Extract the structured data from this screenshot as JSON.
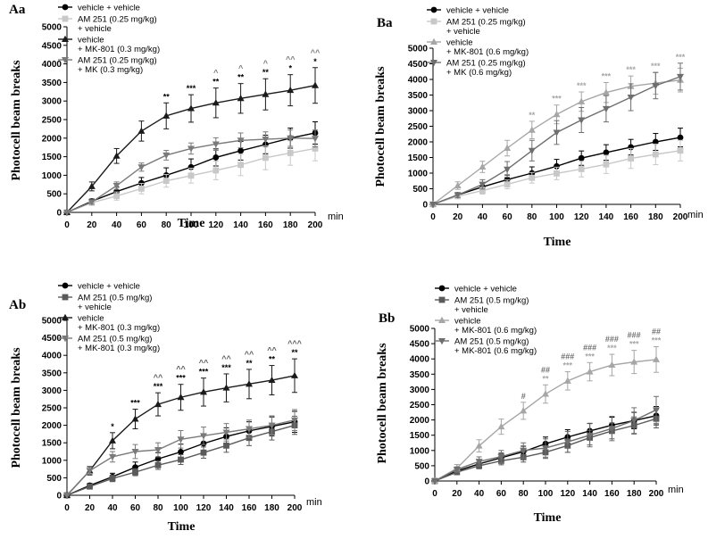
{
  "chart_data": [
    {
      "panel": "Aa",
      "type": "line",
      "xlabel": "Time",
      "ylabel": "Photocell beam breaks",
      "x_unit": "min",
      "x": [
        0,
        20,
        40,
        60,
        80,
        100,
        120,
        140,
        160,
        180,
        200
      ],
      "ylim": [
        0,
        5000
      ],
      "yticks": [
        0,
        500,
        1000,
        1500,
        2000,
        2500,
        3000,
        3500,
        4000,
        4500,
        5000
      ],
      "series": [
        {
          "name": "vehicle + vehicle",
          "color": "#000000",
          "marker": "circle",
          "values": [
            0,
            300,
            560,
            790,
            1000,
            1220,
            1480,
            1660,
            1830,
            2000,
            2140
          ],
          "errors": [
            0,
            60,
            120,
            150,
            200,
            220,
            230,
            250,
            250,
            270,
            300
          ]
        },
        {
          "name": "AM 251 (0.25 mg/kg) + vehicle",
          "color": "#c8c8c8",
          "marker": "square",
          "values": [
            0,
            260,
            440,
            640,
            850,
            990,
            1130,
            1280,
            1470,
            1600,
            1720
          ],
          "errors": [
            0,
            60,
            110,
            140,
            170,
            200,
            250,
            290,
            320,
            330,
            330
          ]
        },
        {
          "name": "vehicle + MK-801 (0.3 mg/kg)",
          "color": "#1a1a1a",
          "marker": "triangle",
          "values": [
            0,
            700,
            1520,
            2190,
            2600,
            2800,
            2950,
            3070,
            3180,
            3290,
            3420
          ],
          "errors": [
            0,
            120,
            200,
            270,
            350,
            370,
            400,
            400,
            420,
            420,
            480
          ]
        },
        {
          "name": "AM 251 (0.25 mg/kg) + MK (0.3 mg/kg)",
          "color": "#7a7a7a",
          "marker": "triangle-down",
          "values": [
            0,
            280,
            720,
            1220,
            1540,
            1720,
            1840,
            1940,
            1970,
            2000,
            1990
          ],
          "errors": [
            0,
            60,
            100,
            110,
            130,
            150,
            170,
            200,
            200,
            220,
            230
          ]
        }
      ],
      "annotations": [
        {
          "x": 80,
          "text": "**",
          "color": "#000000"
        },
        {
          "x": 100,
          "text": "***",
          "color": "#000000"
        },
        {
          "x": 120,
          "text": "**",
          "color": "#000000"
        },
        {
          "x": 140,
          "text": "**",
          "color": "#000000"
        },
        {
          "x": 160,
          "text": "**",
          "color": "#000000"
        },
        {
          "x": 180,
          "text": "*",
          "color": "#000000"
        },
        {
          "x": 200,
          "text": "*",
          "color": "#000000"
        },
        {
          "x": 120,
          "text": "^",
          "color": "#7a7a7a"
        },
        {
          "x": 140,
          "text": "^",
          "color": "#7a7a7a"
        },
        {
          "x": 160,
          "text": "^",
          "color": "#7a7a7a"
        },
        {
          "x": 180,
          "text": "^^",
          "color": "#7a7a7a"
        },
        {
          "x": 200,
          "text": "^^",
          "color": "#7a7a7a"
        }
      ]
    },
    {
      "panel": "Ba",
      "type": "line",
      "xlabel": "Time",
      "ylabel": "Photocell beam breaks",
      "x_unit": "min",
      "x": [
        0,
        20,
        40,
        60,
        80,
        100,
        120,
        140,
        160,
        180,
        200
      ],
      "ylim": [
        0,
        5000
      ],
      "yticks": [
        0,
        500,
        1000,
        1500,
        2000,
        2500,
        3000,
        3500,
        4000,
        4500,
        5000
      ],
      "series": [
        {
          "name": "vehicle + vehicle",
          "color": "#000000",
          "marker": "circle",
          "values": [
            0,
            300,
            560,
            790,
            1000,
            1220,
            1480,
            1660,
            1830,
            2000,
            2140
          ],
          "errors": [
            0,
            60,
            120,
            150,
            200,
            220,
            230,
            250,
            250,
            270,
            300
          ]
        },
        {
          "name": "AM 251 (0.25 mg/kg) + vehicle",
          "color": "#c8c8c8",
          "marker": "square",
          "values": [
            0,
            260,
            440,
            640,
            850,
            990,
            1130,
            1280,
            1470,
            1600,
            1720
          ],
          "errors": [
            0,
            60,
            110,
            140,
            170,
            200,
            250,
            290,
            320,
            330,
            330
          ]
        },
        {
          "name": "vehicle + MK-801 (0.6 mg/kg)",
          "color": "#a6a6a6",
          "marker": "triangle",
          "values": [
            0,
            600,
            1200,
            1800,
            2380,
            2880,
            3290,
            3580,
            3780,
            3880,
            3980
          ],
          "errors": [
            0,
            120,
            180,
            250,
            280,
            300,
            310,
            320,
            330,
            350,
            380
          ]
        },
        {
          "name": "AM 251 (0.25 mg/kg) + MK (0.6 mg/kg)",
          "color": "#6e6e6e",
          "marker": "triangle-down",
          "values": [
            0,
            300,
            640,
            1120,
            1720,
            2300,
            2700,
            3060,
            3430,
            3800,
            4090
          ],
          "errors": [
            0,
            80,
            150,
            250,
            330,
            380,
            400,
            420,
            430,
            420,
            430
          ]
        }
      ],
      "annotations": [
        {
          "x": 80,
          "text": "**",
          "color": "#a6a6a6"
        },
        {
          "x": 100,
          "text": "***",
          "color": "#a6a6a6"
        },
        {
          "x": 120,
          "text": "***",
          "color": "#a6a6a6"
        },
        {
          "x": 140,
          "text": "***",
          "color": "#a6a6a6"
        },
        {
          "x": 160,
          "text": "***",
          "color": "#a6a6a6"
        },
        {
          "x": 180,
          "text": "***",
          "color": "#a6a6a6"
        },
        {
          "x": 200,
          "text": "***",
          "color": "#a6a6a6"
        }
      ]
    },
    {
      "panel": "Ab",
      "type": "line",
      "xlabel": "Time",
      "ylabel": "Photocell beam breaks",
      "x_unit": "min",
      "x": [
        0,
        20,
        40,
        60,
        80,
        100,
        120,
        140,
        160,
        180,
        200
      ],
      "ylim": [
        0,
        5000
      ],
      "yticks": [
        0,
        500,
        1000,
        1500,
        2000,
        2500,
        3000,
        3500,
        4000,
        4500,
        5000
      ],
      "series": [
        {
          "name": "vehicle + vehicle",
          "color": "#000000",
          "marker": "circle",
          "values": [
            0,
            280,
            530,
            800,
            1040,
            1240,
            1480,
            1680,
            1840,
            1970,
            2100
          ],
          "errors": [
            0,
            60,
            100,
            150,
            180,
            220,
            240,
            250,
            260,
            270,
            300
          ]
        },
        {
          "name": "AM 251 (0.5 mg/kg) + vehicle",
          "color": "#5a5a5a",
          "marker": "square",
          "values": [
            0,
            250,
            480,
            660,
            860,
            1020,
            1220,
            1420,
            1640,
            1820,
            2000
          ],
          "errors": [
            0,
            50,
            90,
            100,
            120,
            140,
            160,
            190,
            220,
            240,
            260
          ]
        },
        {
          "name": "vehicle + MK-801 (0.3 mg/kg)",
          "color": "#1a1a1a",
          "marker": "triangle",
          "values": [
            0,
            700,
            1560,
            2180,
            2600,
            2800,
            2950,
            3070,
            3180,
            3290,
            3420
          ],
          "errors": [
            0,
            120,
            230,
            280,
            330,
            370,
            400,
            400,
            420,
            420,
            480
          ]
        },
        {
          "name": "AM 251 (0.5 mg/kg) + MK-801 (0.3 mg/kg)",
          "color": "#7a7a7a",
          "marker": "triangle-down",
          "values": [
            0,
            700,
            1100,
            1250,
            1300,
            1600,
            1700,
            1800,
            1900,
            2000,
            2150
          ],
          "errors": [
            0,
            100,
            150,
            200,
            200,
            250,
            250,
            250,
            250,
            270,
            300
          ]
        }
      ],
      "annotations": [
        {
          "x": 40,
          "text": "*",
          "color": "#000000"
        },
        {
          "x": 60,
          "text": "***",
          "color": "#000000"
        },
        {
          "x": 80,
          "text": "***",
          "color": "#000000"
        },
        {
          "x": 100,
          "text": "***",
          "color": "#000000"
        },
        {
          "x": 120,
          "text": "***",
          "color": "#000000"
        },
        {
          "x": 140,
          "text": "***",
          "color": "#000000"
        },
        {
          "x": 160,
          "text": "**",
          "color": "#000000"
        },
        {
          "x": 180,
          "text": "**",
          "color": "#000000"
        },
        {
          "x": 200,
          "text": "**",
          "color": "#000000"
        },
        {
          "x": 80,
          "text": "^^",
          "color": "#5a5a5a"
        },
        {
          "x": 100,
          "text": "^^",
          "color": "#5a5a5a"
        },
        {
          "x": 120,
          "text": "^^",
          "color": "#5a5a5a"
        },
        {
          "x": 140,
          "text": "^^",
          "color": "#5a5a5a"
        },
        {
          "x": 160,
          "text": "^^",
          "color": "#5a5a5a"
        },
        {
          "x": 180,
          "text": "^^",
          "color": "#5a5a5a"
        },
        {
          "x": 200,
          "text": "^^^",
          "color": "#5a5a5a"
        }
      ]
    },
    {
      "panel": "Bb",
      "type": "line",
      "xlabel": "Time",
      "ylabel": "Photocell beam breaks",
      "x_unit": "min",
      "x": [
        0,
        20,
        40,
        60,
        80,
        100,
        120,
        140,
        160,
        180,
        200
      ],
      "ylim": [
        0,
        5000
      ],
      "yticks": [
        0,
        500,
        1000,
        1500,
        2000,
        2500,
        3000,
        3500,
        4000,
        4500,
        5000
      ],
      "series": [
        {
          "name": "vehicle + vehicle",
          "color": "#000000",
          "marker": "circle",
          "values": [
            0,
            330,
            560,
            760,
            960,
            1220,
            1440,
            1640,
            1830,
            1980,
            2140
          ],
          "errors": [
            0,
            80,
            120,
            150,
            180,
            220,
            240,
            250,
            260,
            270,
            300
          ]
        },
        {
          "name": "AM 251 (0.5 mg/kg) + vehicle",
          "color": "#5a5a5a",
          "marker": "square",
          "values": [
            0,
            290,
            500,
            660,
            780,
            940,
            1160,
            1420,
            1640,
            1820,
            2040
          ],
          "errors": [
            0,
            60,
            100,
            130,
            160,
            200,
            220,
            240,
            260,
            280,
            300
          ]
        },
        {
          "name": "vehicle + MK-801 (0.6 mg/kg)",
          "color": "#a6a6a6",
          "marker": "triangle",
          "values": [
            0,
            420,
            1150,
            1780,
            2300,
            2850,
            3280,
            3580,
            3800,
            3900,
            3980
          ],
          "errors": [
            0,
            120,
            200,
            250,
            280,
            300,
            300,
            300,
            350,
            380,
            420
          ]
        },
        {
          "name": "AM 251 (0.5 mg/kg) + MK-801 (0.6 mg/kg)",
          "color": "#6e6e6e",
          "marker": "triangle-down",
          "values": [
            0,
            380,
            640,
            800,
            1000,
            1080,
            1280,
            1500,
            1720,
            1980,
            2330
          ],
          "errors": [
            0,
            80,
            150,
            200,
            250,
            300,
            340,
            380,
            400,
            420,
            440
          ]
        }
      ],
      "annotations": [
        {
          "x": 100,
          "text": "**",
          "color": "#a6a6a6"
        },
        {
          "x": 120,
          "text": "***",
          "color": "#a6a6a6"
        },
        {
          "x": 140,
          "text": "***",
          "color": "#a6a6a6"
        },
        {
          "x": 160,
          "text": "***",
          "color": "#a6a6a6"
        },
        {
          "x": 180,
          "text": "***",
          "color": "#a6a6a6"
        },
        {
          "x": 200,
          "text": "***",
          "color": "#a6a6a6"
        },
        {
          "x": 80,
          "text": "#",
          "color": "#6e6e6e"
        },
        {
          "x": 100,
          "text": "##",
          "color": "#6e6e6e"
        },
        {
          "x": 120,
          "text": "###",
          "color": "#6e6e6e"
        },
        {
          "x": 140,
          "text": "###",
          "color": "#6e6e6e"
        },
        {
          "x": 160,
          "text": "###",
          "color": "#6e6e6e"
        },
        {
          "x": 180,
          "text": "###",
          "color": "#6e6e6e"
        },
        {
          "x": 200,
          "text": "##",
          "color": "#6e6e6e"
        }
      ]
    }
  ],
  "legends": [
    {
      "panel": "Aa",
      "entries": [
        {
          "lines": [
            "vehicle + vehicle"
          ],
          "color": "#000000",
          "marker": "circle"
        },
        {
          "lines": [
            "AM 251 (0.25 mg/kg)",
            "+ vehicle"
          ],
          "color": "#c8c8c8",
          "marker": "square"
        },
        {
          "lines": [
            "vehicle",
            "+ MK-801 (0.3 mg/kg)"
          ],
          "color": "#1a1a1a",
          "marker": "triangle"
        },
        {
          "lines": [
            "AM 251 (0.25 mg/kg)",
            "+ MK (0.3 mg/kg)"
          ],
          "color": "#7a7a7a",
          "marker": "triangle-down"
        }
      ]
    },
    {
      "panel": "Ba",
      "entries": [
        {
          "lines": [
            "vehicle + vehicle"
          ],
          "color": "#000000",
          "marker": "circle"
        },
        {
          "lines": [
            "AM 251 (0.25 mg/kg)",
            "+ vehicle"
          ],
          "color": "#c8c8c8",
          "marker": "square"
        },
        {
          "lines": [
            "vehicle",
            "+ MK-801 (0.6 mg/kg)"
          ],
          "color": "#a6a6a6",
          "marker": "triangle"
        },
        {
          "lines": [
            "AM 251 (0.25 mg/kg)",
            "+ MK (0.6 mg/kg)"
          ],
          "color": "#6e6e6e",
          "marker": "triangle-down"
        }
      ]
    },
    {
      "panel": "Ab",
      "entries": [
        {
          "lines": [
            "vehicle + vehicle"
          ],
          "color": "#000000",
          "marker": "circle"
        },
        {
          "lines": [
            "AM 251 (0.5 mg/kg)",
            "+ vehicle"
          ],
          "color": "#5a5a5a",
          "marker": "square"
        },
        {
          "lines": [
            "vehicle",
            "+ MK-801 (0.3 mg/kg)"
          ],
          "color": "#1a1a1a",
          "marker": "triangle"
        },
        {
          "lines": [
            "AM 251 (0.5 mg/kg)",
            "+ MK-801 (0.3 mg/kg)"
          ],
          "color": "#7a7a7a",
          "marker": "triangle-down"
        }
      ]
    },
    {
      "panel": "Bb",
      "entries": [
        {
          "lines": [
            "vehicle + vehicle"
          ],
          "color": "#000000",
          "marker": "circle"
        },
        {
          "lines": [
            "AM 251 (0.5 mg/kg)",
            "+ vehicle"
          ],
          "color": "#5a5a5a",
          "marker": "square"
        },
        {
          "lines": [
            "vehicle",
            "+ MK-801 (0.6 mg/kg)"
          ],
          "color": "#a6a6a6",
          "marker": "triangle"
        },
        {
          "lines": [
            "AM 251 (0.5 mg/kg)",
            "+ MK-801 (0.6 mg/kg)"
          ],
          "color": "#6e6e6e",
          "marker": "triangle-down"
        }
      ]
    }
  ]
}
